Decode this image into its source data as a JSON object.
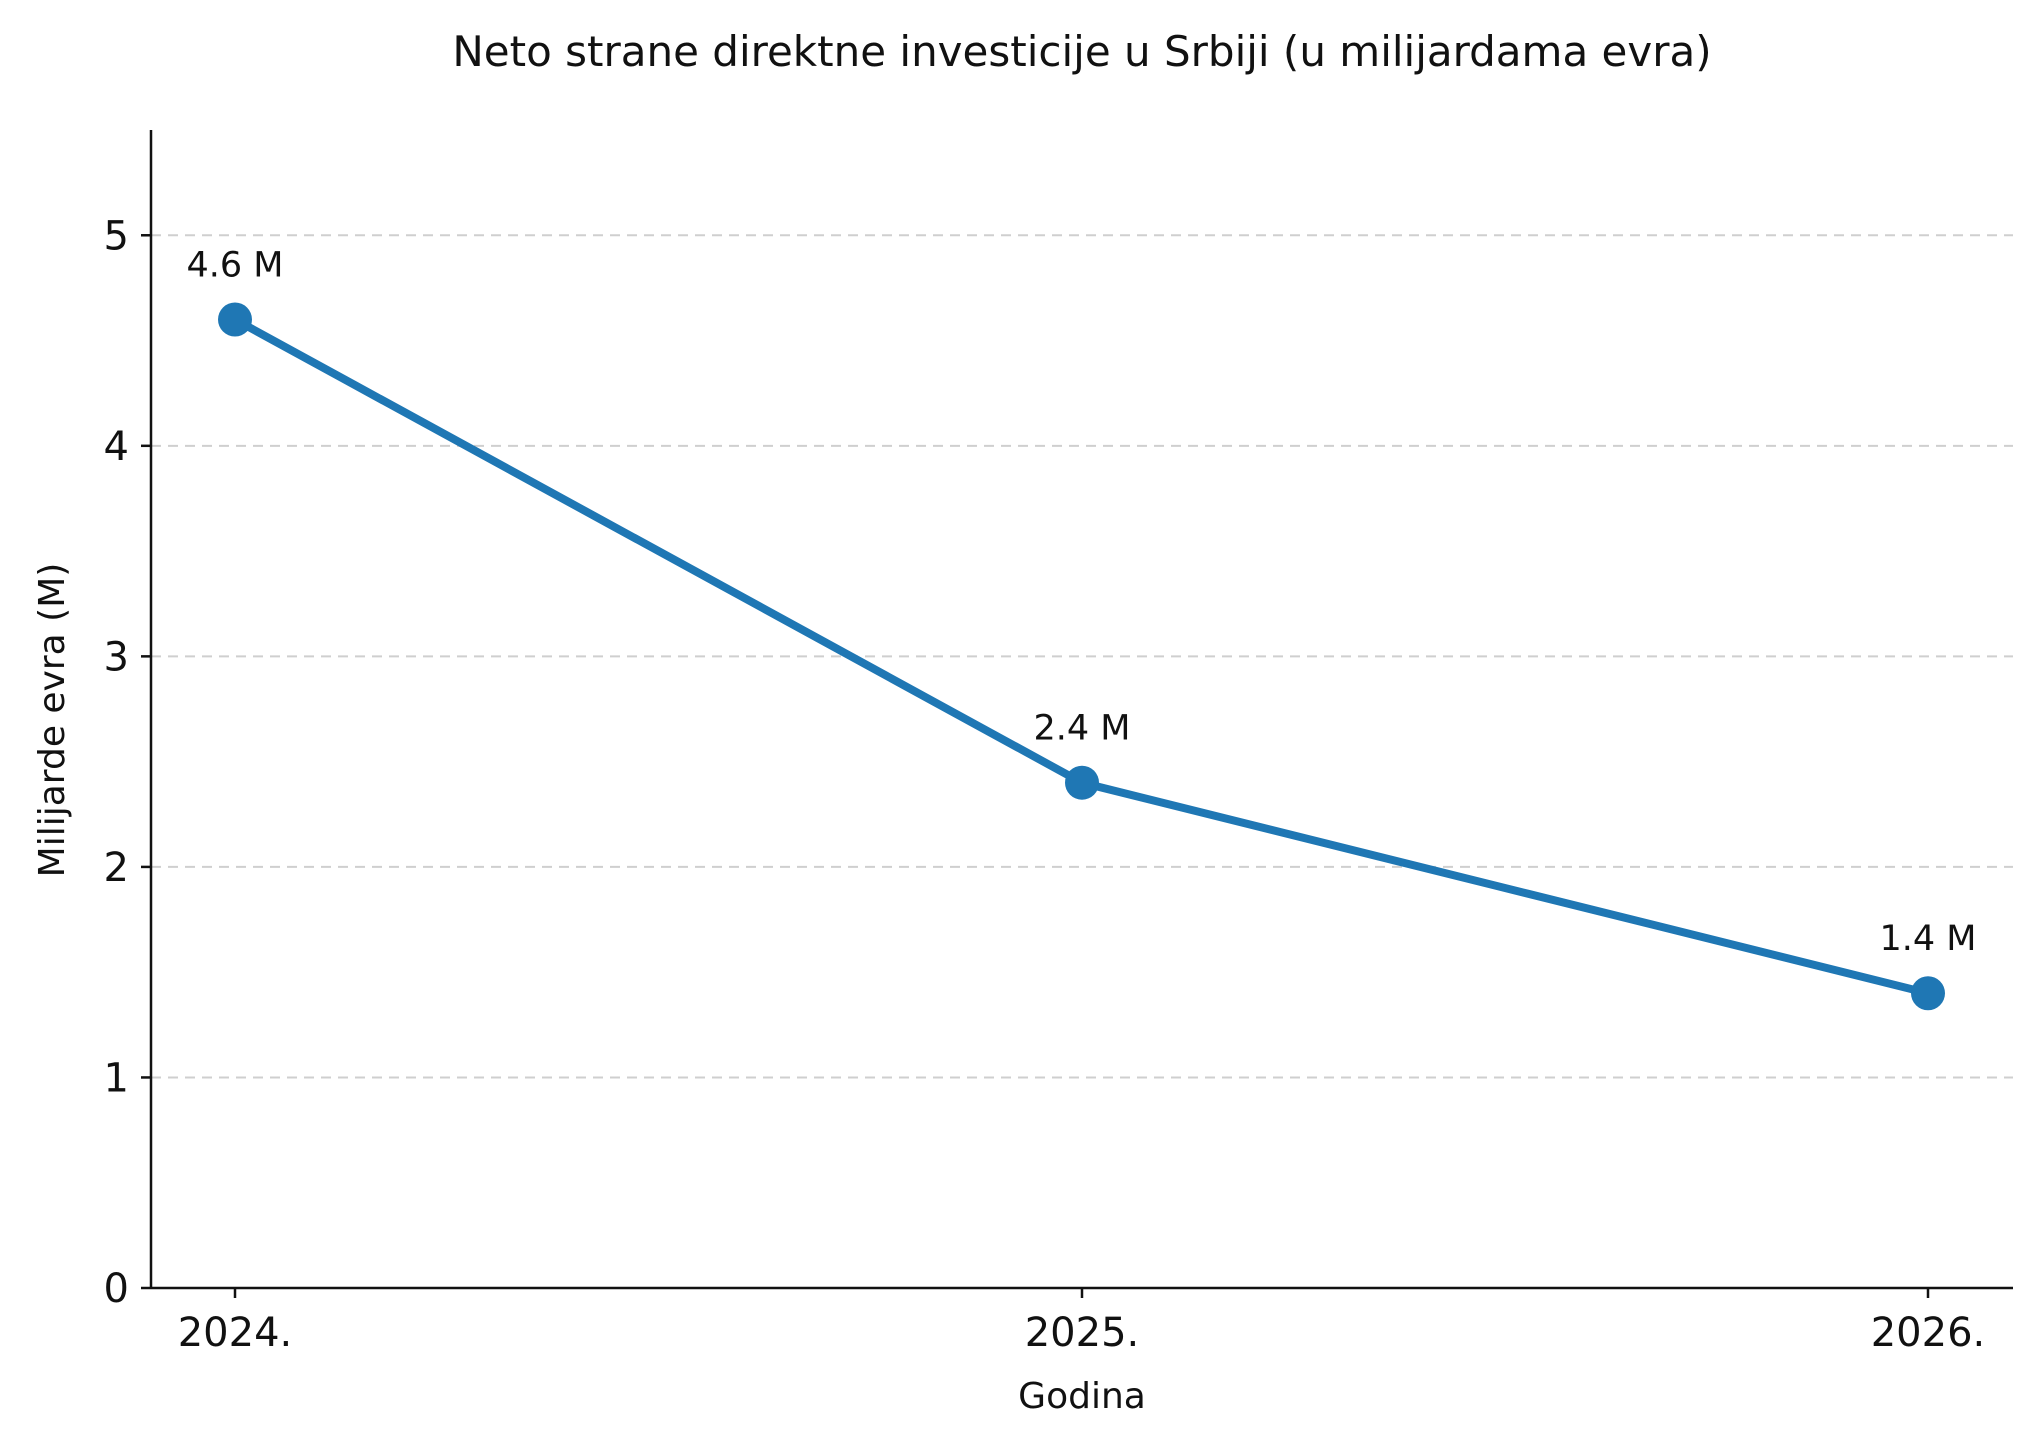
{
  "chart_data": {
    "type": "line",
    "title": "Neto strane direktne investicije u Srbiji (u milijardama evra)",
    "xlabel": "Godina",
    "ylabel": "Milijarde evra (M)",
    "categories": [
      "2024.",
      "2025.",
      "2026."
    ],
    "series": [
      {
        "values": [
          4.6,
          2.4,
          1.4
        ],
        "data_labels": [
          "4.6 M",
          "2.4 M",
          "1.4 M"
        ],
        "color": "#1f77b4",
        "marker": "circle"
      }
    ],
    "ylim": [
      0,
      5.5
    ],
    "yticks": [
      0,
      1,
      2,
      3,
      4,
      5
    ],
    "grid": "horizontal-dashed",
    "legend": "none"
  }
}
